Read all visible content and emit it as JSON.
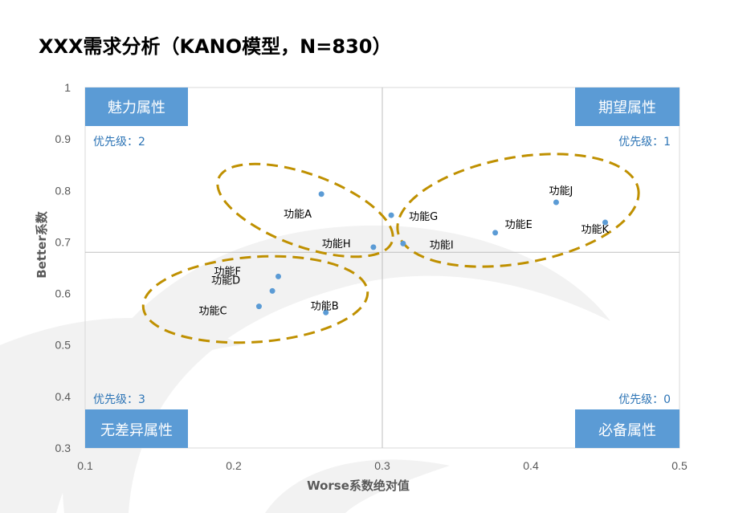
{
  "chart_data": {
    "type": "scatter",
    "title": "XXX需求分析（KANO模型，N=830）",
    "xlabel": "Worse系数绝对值",
    "ylabel": "Better系数",
    "xlim": [
      0.1,
      0.5
    ],
    "ylim": [
      0.3,
      1.0
    ],
    "x_ticks": [
      "0.1",
      "0.2",
      "0.3",
      "0.4",
      "0.5"
    ],
    "y_ticks": [
      "0.3",
      "0.4",
      "0.5",
      "0.6",
      "0.7",
      "0.8",
      "0.9",
      "1"
    ],
    "divider": {
      "x": 0.3,
      "y": 0.68
    },
    "point_color": "#5b9bd5",
    "points": [
      {
        "label": "功能A",
        "x": 0.259,
        "y": 0.793
      },
      {
        "label": "功能B",
        "x": 0.262,
        "y": 0.563
      },
      {
        "label": "功能C",
        "x": 0.217,
        "y": 0.575
      },
      {
        "label": "功能D",
        "x": 0.226,
        "y": 0.605
      },
      {
        "label": "功能E",
        "x": 0.376,
        "y": 0.718
      },
      {
        "label": "功能F",
        "x": 0.23,
        "y": 0.633
      },
      {
        "label": "功能G",
        "x": 0.306,
        "y": 0.752
      },
      {
        "label": "功能H",
        "x": 0.294,
        "y": 0.69
      },
      {
        "label": "功能I",
        "x": 0.314,
        "y": 0.697
      },
      {
        "label": "功能J",
        "x": 0.417,
        "y": 0.777
      },
      {
        "label": "功能K",
        "x": 0.45,
        "y": 0.738
      }
    ],
    "quadrants": [
      {
        "label": "魅力属性",
        "priority": "优先级：2",
        "position": "top-left"
      },
      {
        "label": "期望属性",
        "priority": "优先级：1",
        "position": "top-right"
      },
      {
        "label": "无差异属性",
        "priority": "优先级：3",
        "position": "bottom-left"
      },
      {
        "label": "必备属性",
        "priority": "优先级：0",
        "position": "bottom-right"
      }
    ],
    "quadrant_label_bg": "#5b9bd5",
    "priority_color": "#2e75b6",
    "cluster_color": "#bf9000",
    "grid": false
  }
}
